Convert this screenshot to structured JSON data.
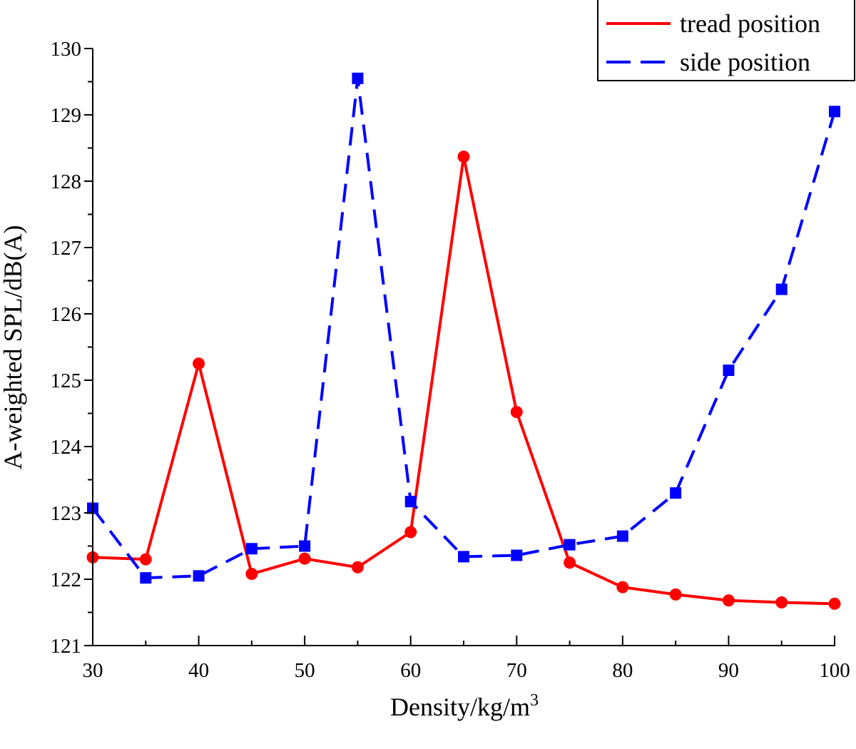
{
  "chart_data": {
    "type": "line",
    "title": "",
    "xlabel": "Density/kg/m",
    "xlabel_superscript": "3",
    "ylabel": "A-weighted SPL/dB(A)",
    "xlim": [
      30,
      100
    ],
    "ylim": [
      121,
      130
    ],
    "xticks": [
      30,
      40,
      50,
      60,
      70,
      80,
      90,
      100
    ],
    "xtick_labels": [
      "30",
      "40",
      "50",
      "60",
      "70",
      "80",
      "90",
      "100"
    ],
    "yticks": [
      121,
      122,
      123,
      124,
      125,
      126,
      127,
      128,
      129,
      130
    ],
    "ytick_labels": [
      "121",
      "122",
      "123",
      "124",
      "125",
      "126",
      "127",
      "128",
      "129",
      "130"
    ],
    "grid": false,
    "legend_position": "top-right",
    "x": [
      30,
      35,
      40,
      45,
      50,
      55,
      60,
      65,
      70,
      75,
      80,
      85,
      90,
      95,
      100
    ],
    "series": [
      {
        "name": "tread position",
        "color": "#ff0000",
        "line_style": "solid",
        "marker": "circle",
        "values": [
          122.33,
          122.3,
          125.25,
          122.08,
          122.31,
          122.18,
          122.71,
          128.37,
          124.52,
          122.25,
          121.88,
          121.77,
          121.68,
          121.65,
          121.63
        ]
      },
      {
        "name": "side position",
        "color": "#0000ff",
        "line_style": "dashed",
        "marker": "square",
        "values": [
          123.07,
          122.02,
          122.05,
          122.46,
          122.5,
          129.55,
          123.17,
          122.34,
          122.36,
          122.52,
          122.65,
          123.3,
          125.15,
          126.37,
          129.05
        ]
      }
    ]
  }
}
